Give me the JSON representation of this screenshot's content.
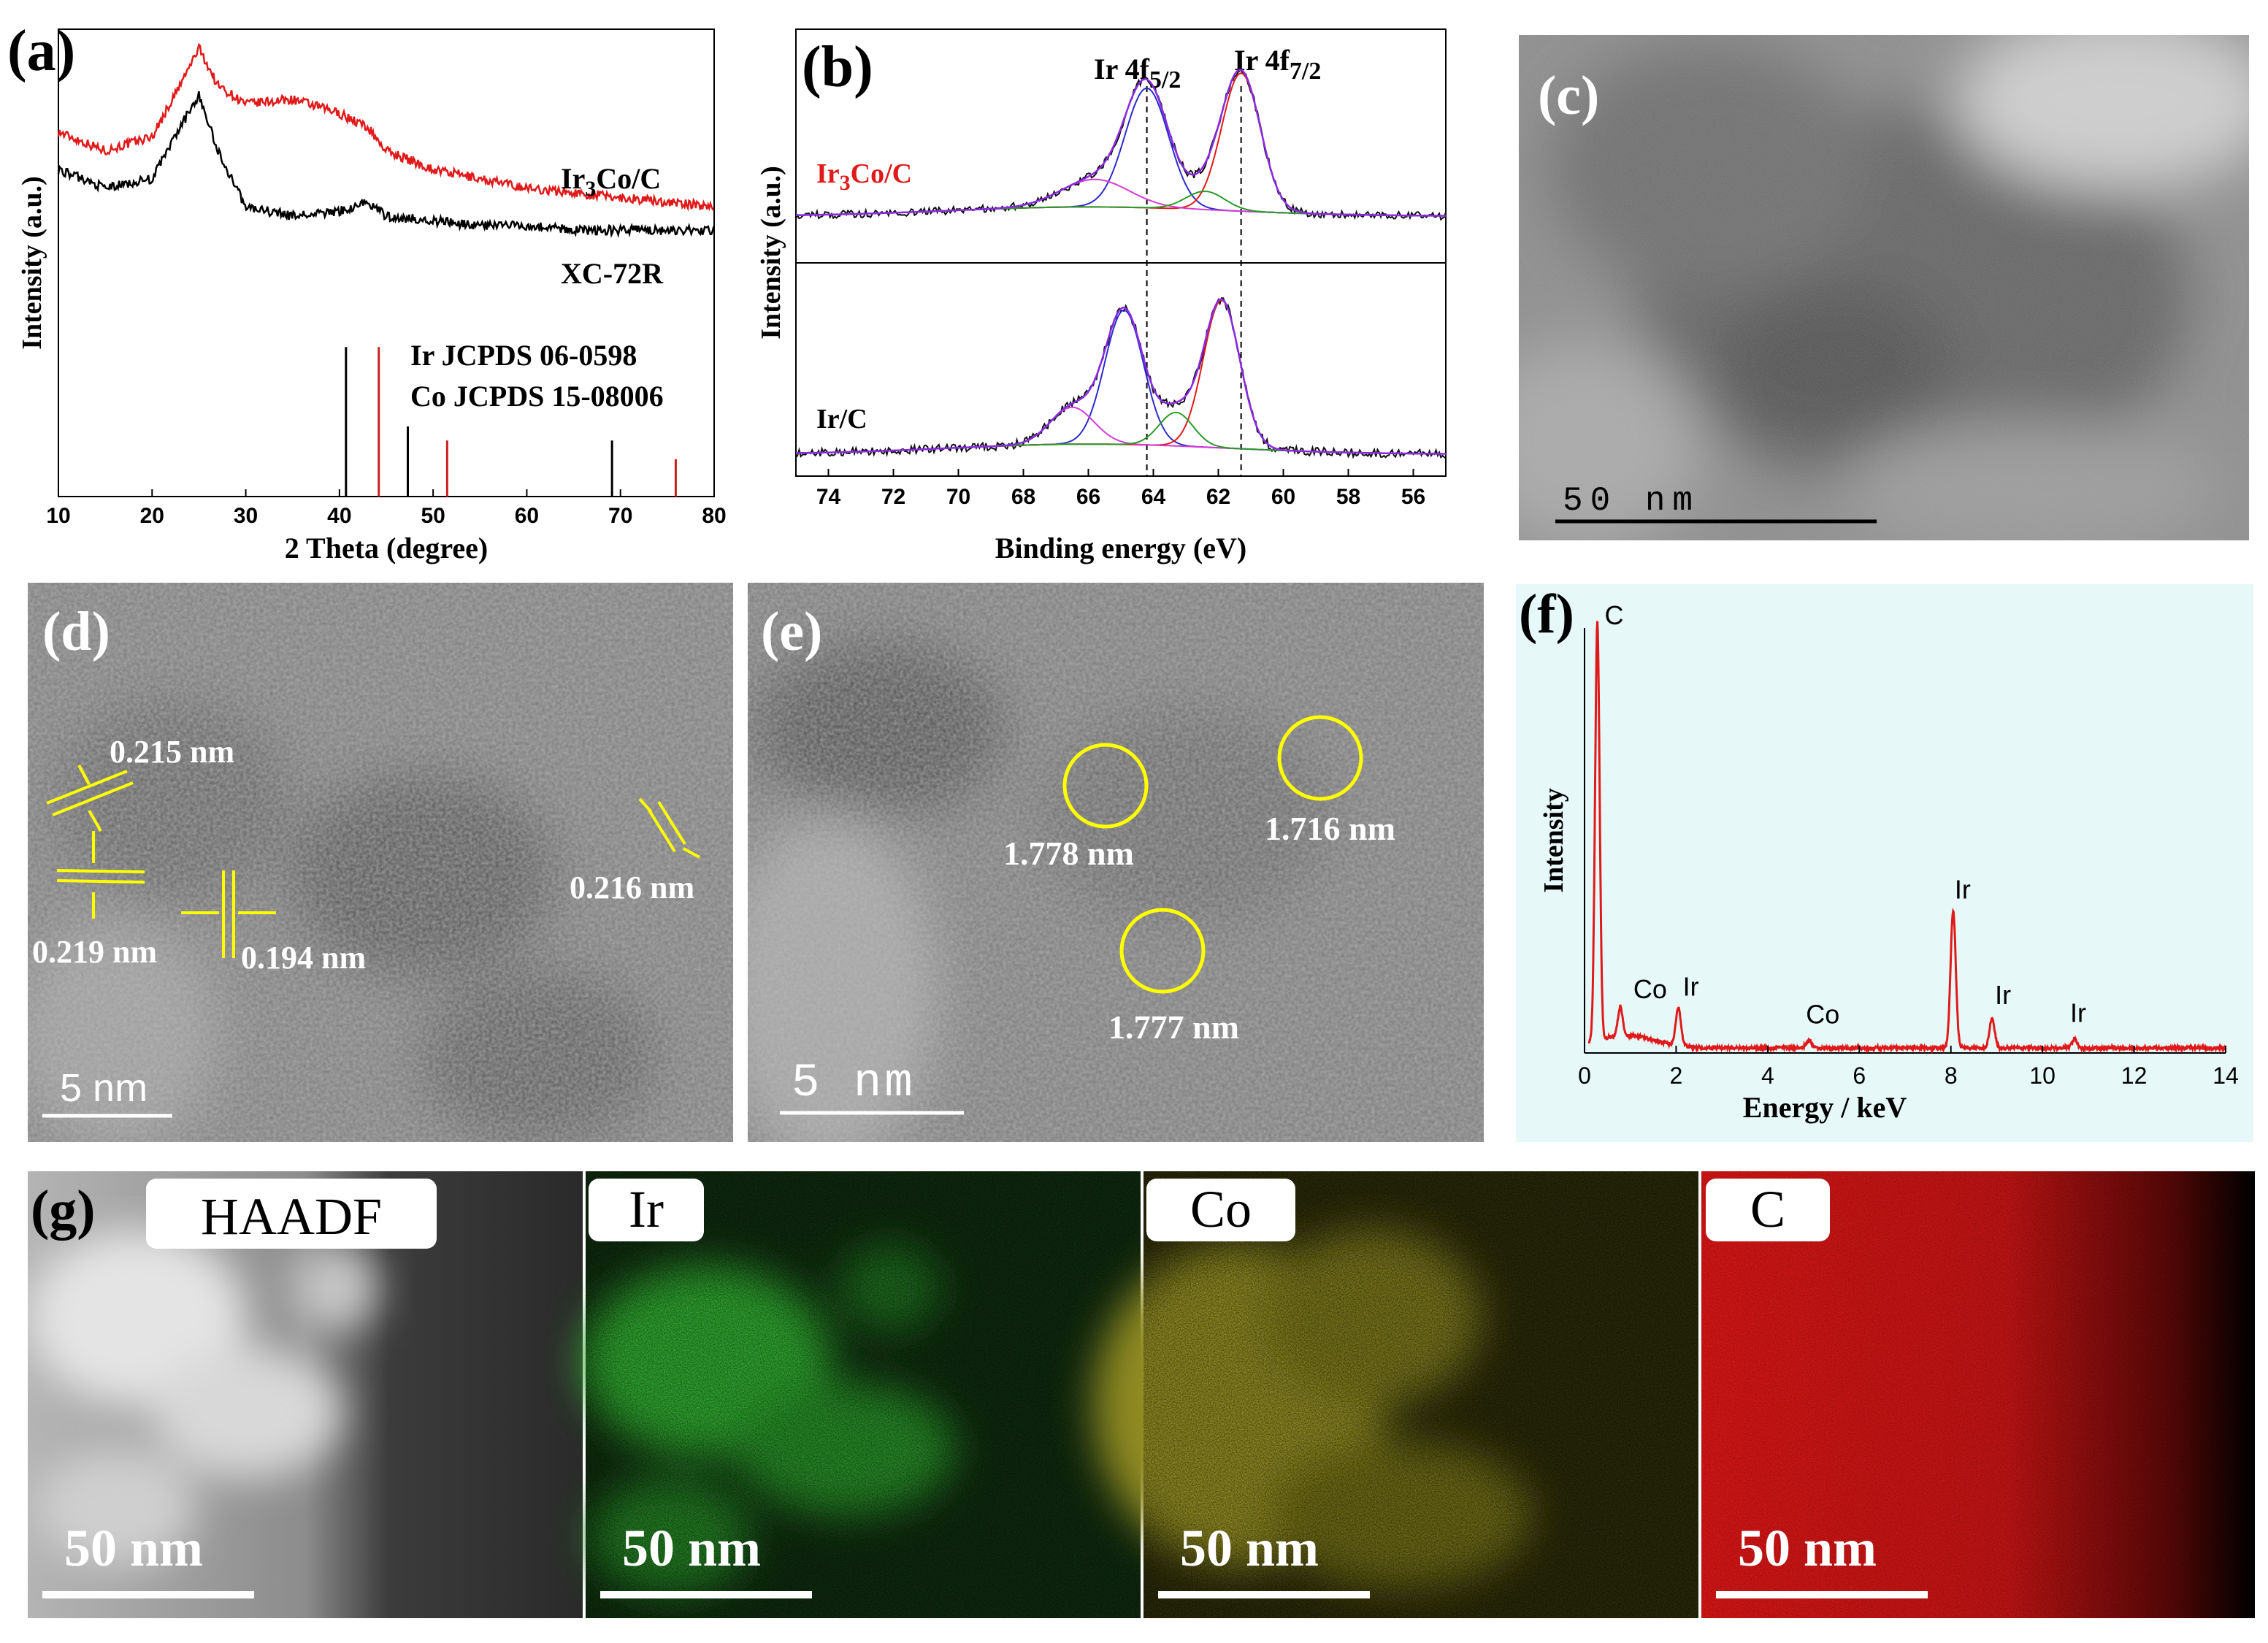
{
  "panels": {
    "a": {
      "letter": "(a)"
    },
    "b": {
      "letter": "(b)"
    },
    "c": {
      "letter": "(c)",
      "scale_bar": "50 nm"
    },
    "d": {
      "letter": "(d)",
      "scale_bar": "5 nm",
      "annotations": [
        "0.215 nm",
        "0.219 nm",
        "0.194 nm",
        "0.216 nm"
      ]
    },
    "e": {
      "letter": "(e)",
      "scale_bar": "5 nm",
      "annotations": [
        "1.778 nm",
        "1.716 nm",
        "1.777 nm"
      ]
    },
    "f": {
      "letter": "(f)"
    },
    "g": {
      "letter": "(g)",
      "maps": [
        {
          "label": "HAADF",
          "scale_bar": "50 nm",
          "color": "#ffffff"
        },
        {
          "label": "Ir",
          "scale_bar": "50 nm",
          "color": "#2fd12f"
        },
        {
          "label": "Co",
          "scale_bar": "50 nm",
          "color": "#e6e02a"
        },
        {
          "label": "C",
          "scale_bar": "50 nm",
          "color": "#e01a1a"
        }
      ]
    }
  },
  "chart_data": [
    {
      "panel": "a",
      "type": "line",
      "xlabel": "2 Theta (degree)",
      "ylabel": "Intensity (a.u.)",
      "xlim": [
        10,
        80
      ],
      "x_ticks": [
        10,
        20,
        30,
        40,
        50,
        60,
        70,
        80
      ],
      "series": [
        {
          "name": "Ir3Co/C",
          "color": "#e01a1a",
          "x": [
            10,
            15,
            20,
            23,
            25,
            27,
            30,
            35,
            40,
            43,
            45,
            50,
            55,
            60,
            65,
            70,
            75,
            80
          ],
          "y": [
            0.78,
            0.74,
            0.77,
            0.88,
            0.96,
            0.88,
            0.84,
            0.85,
            0.82,
            0.79,
            0.74,
            0.7,
            0.68,
            0.66,
            0.65,
            0.64,
            0.63,
            0.62
          ]
        },
        {
          "name": "XC-72R",
          "color": "#000000",
          "x": [
            10,
            15,
            20,
            23,
            25,
            27,
            30,
            35,
            40,
            43,
            45,
            50,
            55,
            60,
            65,
            70,
            75,
            80
          ],
          "y": [
            0.7,
            0.66,
            0.68,
            0.79,
            0.86,
            0.74,
            0.62,
            0.6,
            0.61,
            0.63,
            0.6,
            0.59,
            0.58,
            0.58,
            0.57,
            0.57,
            0.57,
            0.57
          ]
        }
      ],
      "reference_lines": [
        {
          "name": "Ir   JCPDS 06-0598",
          "color": "#000000",
          "positions": [
            40.7,
            47.3,
            69.1
          ],
          "heights": [
            0.32,
            0.15,
            0.12
          ]
        },
        {
          "name": "Co JCPDS 15-08006",
          "color": "#cc1f1f",
          "positions": [
            44.2,
            51.5,
            75.9
          ],
          "heights": [
            0.32,
            0.12,
            0.08
          ]
        }
      ]
    },
    {
      "panel": "b",
      "type": "line",
      "xlabel": "Binding energy (eV)",
      "ylabel": "Intensity (a.u.)",
      "xlim": [
        75,
        55
      ],
      "x_ticks": [
        74,
        72,
        70,
        68,
        66,
        64,
        62,
        60,
        58,
        56
      ],
      "peak_labels": {
        "left_main": "Ir 4f",
        "left_sub": "5/2",
        "right_main": "Ir 4f",
        "right_sub": "7/2"
      },
      "dashed_lines": [
        64.2,
        61.3
      ],
      "subplots": [
        {
          "name_main": "Ir",
          "name_sub": "3",
          "name_tail": "Co/C",
          "color": "#e01a1a",
          "peaks": [
            {
              "center": 64.2,
              "height": 0.78,
              "width": 0.9
            },
            {
              "center": 61.3,
              "height": 0.9,
              "width": 0.8
            },
            {
              "center": 65.8,
              "height": 0.18,
              "width": 1.4
            },
            {
              "center": 62.4,
              "height": 0.12,
              "width": 0.8
            }
          ]
        },
        {
          "name_main": "Ir/C",
          "name_sub": "",
          "name_tail": "",
          "color": "#000000",
          "peaks": [
            {
              "center": 64.9,
              "height": 0.8,
              "width": 0.8
            },
            {
              "center": 61.9,
              "height": 0.88,
              "width": 0.75
            },
            {
              "center": 66.5,
              "height": 0.22,
              "width": 0.9
            },
            {
              "center": 63.3,
              "height": 0.2,
              "width": 0.7
            }
          ]
        }
      ]
    },
    {
      "panel": "f",
      "type": "line",
      "xlabel": "Energy / keV",
      "ylabel": "Intensity",
      "xlim": [
        0,
        14
      ],
      "x_ticks": [
        0,
        2,
        4,
        6,
        8,
        10,
        12,
        14
      ],
      "color": "#e01a1a",
      "peaks": [
        {
          "label": "C",
          "energy": 0.28,
          "height": 1.0
        },
        {
          "label": "Co",
          "energy": 0.78,
          "height": 0.07
        },
        {
          "label": "Ir",
          "energy": 2.05,
          "height": 0.09
        },
        {
          "label": "Co",
          "energy": 4.9,
          "height": 0.02
        },
        {
          "label": "Ir",
          "energy": 8.05,
          "height": 0.33
        },
        {
          "label": "Ir",
          "energy": 8.9,
          "height": 0.07
        },
        {
          "label": "Ir",
          "energy": 10.7,
          "height": 0.02
        }
      ]
    }
  ]
}
